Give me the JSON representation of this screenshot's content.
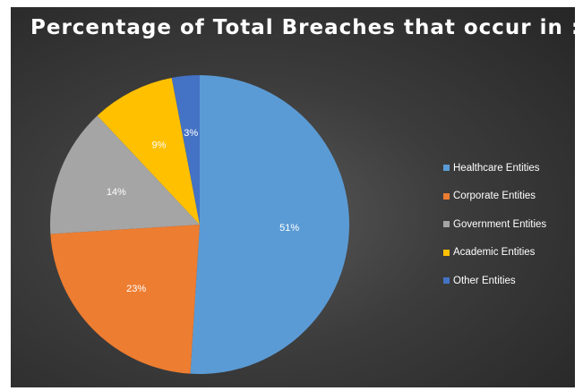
{
  "colors": {
    "healthcare": "#5b9bd5",
    "corporate": "#ed7d31",
    "government": "#a5a5a5",
    "academic": "#ffc000",
    "other": "#4472c4"
  },
  "chart_data": {
    "type": "pie",
    "title": "Percentage of Total Breaches that occur in :",
    "legend_position": "right",
    "categories": [
      "Healthcare Entities",
      "Corporate Entities",
      "Government Entities",
      "Academic Entities",
      "Other Entities"
    ],
    "values": [
      51,
      23,
      14,
      9,
      3
    ],
    "value_labels": [
      "51%",
      "23%",
      "14%",
      "9%",
      "3%"
    ],
    "colors": [
      "#5b9bd5",
      "#ed7d31",
      "#a5a5a5",
      "#ffc000",
      "#4472c4"
    ]
  }
}
